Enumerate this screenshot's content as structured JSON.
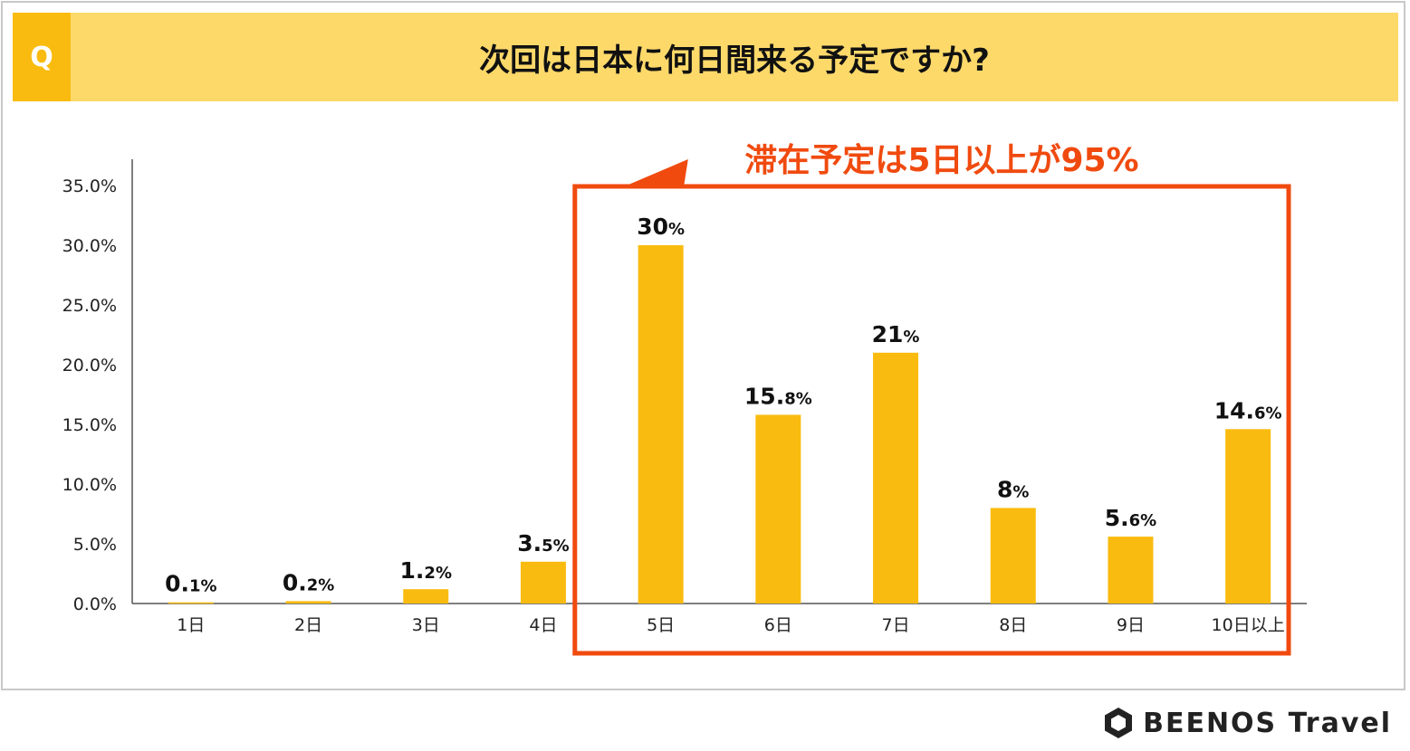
{
  "header": {
    "badge": "Q",
    "question": "次回は日本に何日間来る予定ですか?"
  },
  "callout": {
    "text": "滞在予定は5日以上が95%"
  },
  "brand": {
    "name": "BEENOS Travel"
  },
  "colors": {
    "bar": "#f9bb0f",
    "header_bg": "#fdd96a",
    "badge_bg": "#f9bb0f",
    "highlight": "#f04a0f"
  },
  "chart_data": {
    "type": "bar",
    "categories": [
      "1日",
      "2日",
      "3日",
      "4日",
      "5日",
      "6日",
      "7日",
      "8日",
      "9日",
      "10日以上"
    ],
    "values": [
      0.1,
      0.2,
      1.2,
      3.5,
      30,
      15.8,
      21,
      8,
      5.6,
      14.6
    ],
    "labels": [
      {
        "main": "0.",
        "sub": "1%"
      },
      {
        "main": "0.",
        "sub": "2%"
      },
      {
        "main": "1.",
        "sub": "2%"
      },
      {
        "main": "3.",
        "sub": "5%"
      },
      {
        "main": "30",
        "sub": "%"
      },
      {
        "main": "15.",
        "sub": "8%"
      },
      {
        "main": "21",
        "sub": "%"
      },
      {
        "main": "8",
        "sub": "%"
      },
      {
        "main": "5.",
        "sub": "6%"
      },
      {
        "main": "14.",
        "sub": "6%"
      }
    ],
    "yticks": [
      "0.0%",
      "5.0%",
      "10.0%",
      "15.0%",
      "20.0%",
      "25.0%",
      "30.0%",
      "35.0%"
    ],
    "ylim": [
      0,
      35
    ],
    "grid": false,
    "highlight_range": [
      "5日",
      "10日以上"
    ]
  }
}
